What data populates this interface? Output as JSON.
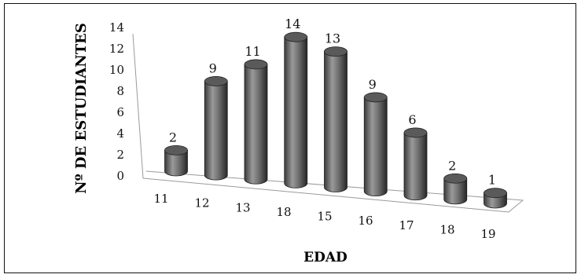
{
  "chart_data": {
    "type": "bar",
    "title": "",
    "xlabel": "EDAD",
    "ylabel": "Nº DE ESTUDIANTES",
    "categories": [
      "11",
      "12",
      "13",
      "18",
      "15",
      "16",
      "17",
      "18",
      "19"
    ],
    "values": [
      2,
      9,
      11,
      14,
      13,
      9,
      6,
      2,
      1
    ],
    "ylim": [
      0,
      14
    ],
    "yticks": [
      0,
      2,
      4,
      6,
      8,
      10,
      12,
      14
    ],
    "grid": false,
    "legend": "none",
    "style": "3d-cylinder",
    "colors": {
      "bar_light": "#8f8f8f",
      "bar_dark": "#2f2f2f",
      "bar_top": "#5a5a5a",
      "axis": "#9a9a9a"
    }
  }
}
